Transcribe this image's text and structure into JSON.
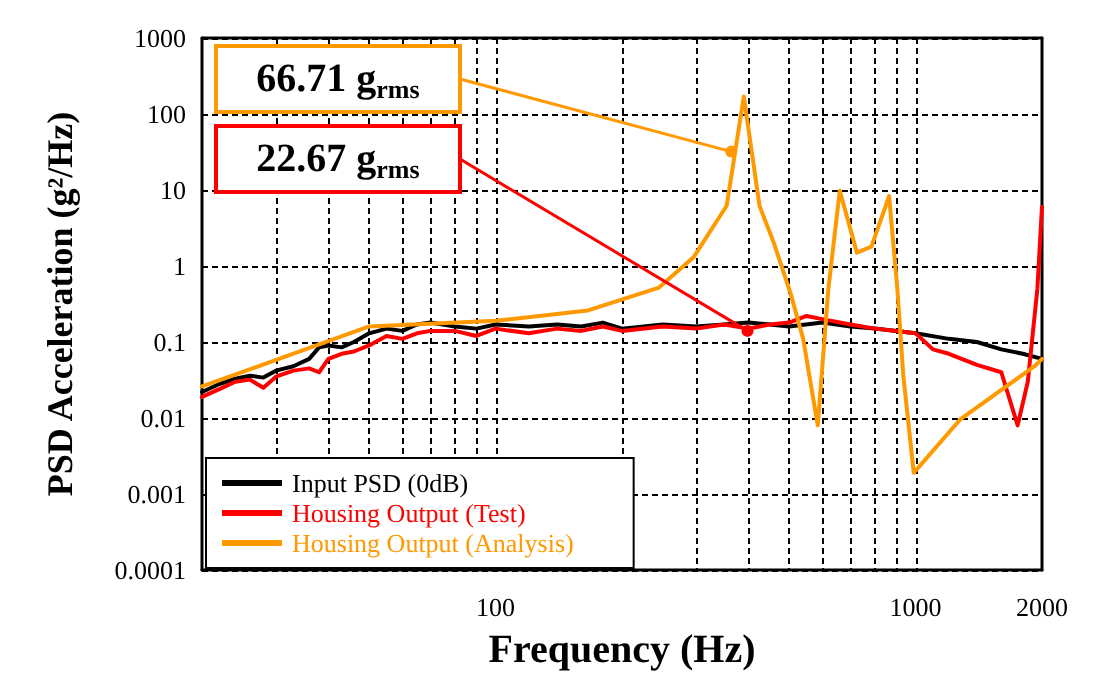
{
  "chart_data": {
    "type": "line",
    "xlabel": "Frequency (Hz)",
    "ylabel": "PSD Acceleration (g²/Hz)",
    "log": "xy",
    "xlim": [
      20,
      2000
    ],
    "xticks": [
      100,
      1000,
      2000
    ],
    "ylim": [
      0.0001,
      1000
    ],
    "yticks": [
      0.0001,
      0.001,
      0.01,
      0.1,
      1,
      10,
      100,
      1000
    ],
    "grid": true,
    "legend": "bottom left",
    "line_style": "solid",
    "marker": "none",
    "series": [
      {
        "name": "Input PSD (0dB)",
        "color": "#000000",
        "x": [
          20,
          22,
          24,
          26,
          28,
          30,
          33,
          36,
          38,
          40,
          43,
          46,
          50,
          55,
          60,
          65,
          70,
          80,
          90,
          100,
          120,
          140,
          160,
          180,
          200,
          250,
          300,
          350,
          400,
          450,
          500,
          600,
          700,
          800,
          900,
          1000,
          1200,
          1400,
          1600,
          1800,
          2000
        ],
        "values": [
          0.022,
          0.028,
          0.033,
          0.036,
          0.034,
          0.042,
          0.048,
          0.06,
          0.085,
          0.09,
          0.085,
          0.1,
          0.13,
          0.15,
          0.14,
          0.17,
          0.18,
          0.16,
          0.15,
          0.17,
          0.16,
          0.17,
          0.16,
          0.18,
          0.15,
          0.17,
          0.16,
          0.17,
          0.18,
          0.17,
          0.16,
          0.18,
          0.16,
          0.15,
          0.14,
          0.13,
          0.11,
          0.1,
          0.08,
          0.07,
          0.06
        ]
      },
      {
        "name": "Housing Output (Test)",
        "color": "#ff0000",
        "x": [
          20,
          22,
          24,
          26,
          28,
          30,
          33,
          36,
          38,
          40,
          43,
          46,
          50,
          55,
          60,
          65,
          70,
          80,
          90,
          100,
          120,
          140,
          160,
          180,
          200,
          250,
          300,
          350,
          400,
          450,
          500,
          550,
          600,
          700,
          800,
          900,
          1000,
          1100,
          1200,
          1400,
          1600,
          1750,
          1850,
          1950,
          2000
        ],
        "values": [
          0.019,
          0.024,
          0.03,
          0.032,
          0.025,
          0.035,
          0.042,
          0.045,
          0.04,
          0.06,
          0.07,
          0.075,
          0.09,
          0.12,
          0.11,
          0.13,
          0.14,
          0.14,
          0.12,
          0.15,
          0.13,
          0.15,
          0.14,
          0.16,
          0.14,
          0.16,
          0.15,
          0.17,
          0.15,
          0.17,
          0.18,
          0.22,
          0.2,
          0.17,
          0.15,
          0.14,
          0.13,
          0.08,
          0.07,
          0.05,
          0.04,
          0.008,
          0.03,
          0.5,
          6
        ]
      },
      {
        "name": "Housing Output (Analysis)",
        "color": "#ff9900",
        "x": [
          20,
          50,
          100,
          166,
          245,
          296,
          355,
          390,
          425,
          460,
          505,
          540,
          585,
          620,
          660,
          725,
          785,
          865,
          905,
          935,
          990,
          1280,
          1920,
          2000
        ],
        "values": [
          0.026,
          0.16,
          0.19,
          0.26,
          0.52,
          1.3,
          6.2,
          170,
          6.2,
          2,
          0.42,
          0.11,
          0.008,
          0.5,
          9.8,
          1.5,
          1.8,
          8.3,
          0.5,
          0.036,
          0.0019,
          0.0097,
          0.048,
          0.06
        ]
      }
    ],
    "annotations": [
      {
        "text": "66.71 g$_{rms}$",
        "x": 364,
        "y": 32
      },
      {
        "text": "22.67 g$_{rms}$",
        "x": 398,
        "y": 0.14
      }
    ]
  }
}
